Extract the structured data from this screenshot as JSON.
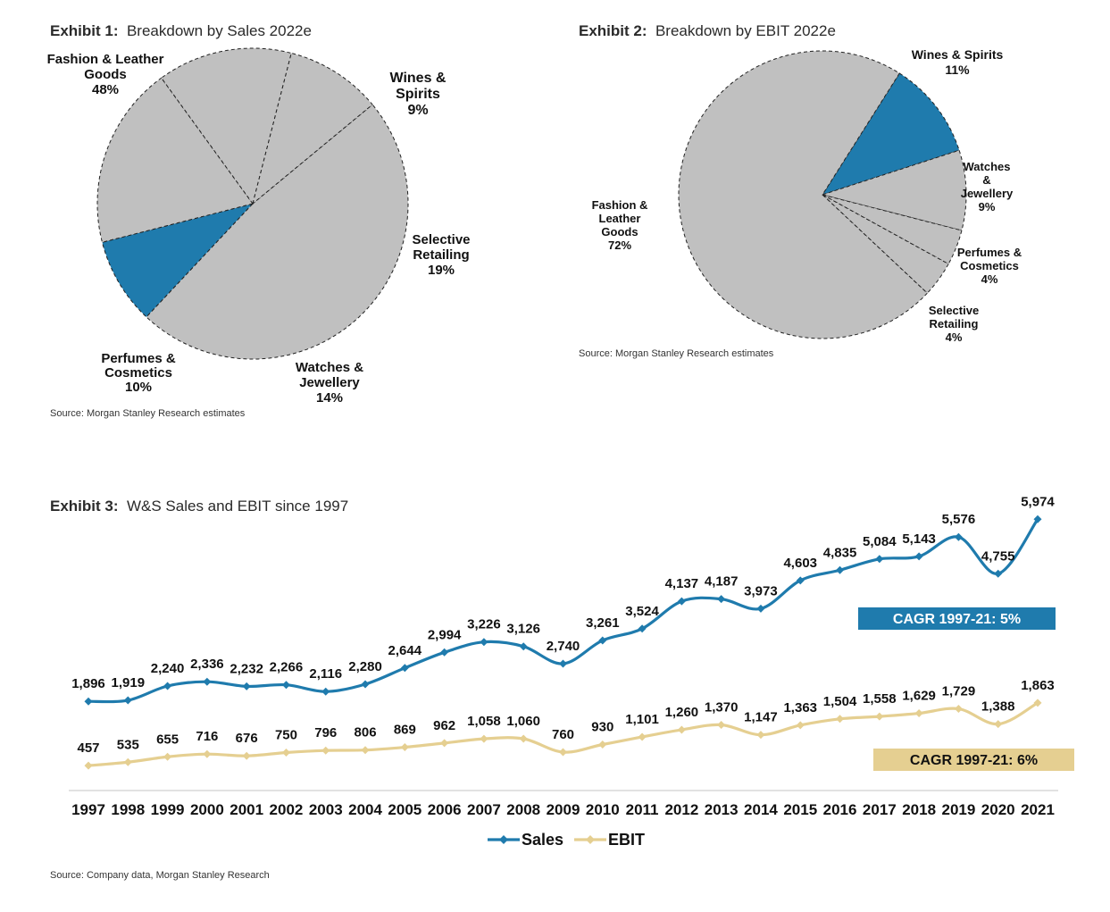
{
  "colors": {
    "grey_slice": "#c0c0c0",
    "blue": "#1f7bad",
    "gold": "#e5cf91",
    "cagr_sales_bg": "#1f7bad",
    "cagr_ebit_bg": "#e5cf91"
  },
  "chart_data": [
    {
      "type": "pie",
      "exhibit": "Exhibit 1:",
      "title": "Breakdown by Sales 2022e",
      "source": "Source: Morgan Stanley Research estimates",
      "slices": [
        {
          "label": "Fashion & Leather Goods",
          "value_label": "48%",
          "value": 48,
          "color": "#c0c0c0"
        },
        {
          "label": "Wines & Spirits",
          "value_label": "9%",
          "value": 9,
          "color": "#1f7bad"
        },
        {
          "label": "Selective Retailing",
          "value_label": "19%",
          "value": 19,
          "color": "#c0c0c0"
        },
        {
          "label": "Watches & Jewellery",
          "value_label": "14%",
          "value": 14,
          "color": "#c0c0c0"
        },
        {
          "label": "Perfumes & Cosmetics",
          "value_label": "10%",
          "value": 10,
          "color": "#c0c0c0"
        }
      ]
    },
    {
      "type": "pie",
      "exhibit": "Exhibit 2:",
      "title": "Breakdown by EBIT 2022e",
      "source": "Source: Morgan Stanley Research estimates",
      "slices": [
        {
          "label": "Wines & Spirits",
          "value_label": "11%",
          "value": 11,
          "color": "#1f7bad"
        },
        {
          "label": "Watches & Jewellery",
          "value_label": "9%",
          "value": 9,
          "color": "#c0c0c0"
        },
        {
          "label": "Perfumes & Cosmetics",
          "value_label": "4%",
          "value": 4,
          "color": "#c0c0c0"
        },
        {
          "label": "Selective Retailing",
          "value_label": "4%",
          "value": 4,
          "color": "#c0c0c0"
        },
        {
          "label": "Fashion & Leather Goods",
          "value_label": "72%",
          "value": 72,
          "color": "#c0c0c0"
        }
      ]
    },
    {
      "type": "line",
      "exhibit": "Exhibit 3:",
      "title": "W&S Sales and EBIT since 1997",
      "source": "Source: Company data, Morgan Stanley Research",
      "categories": [
        "1997",
        "1998",
        "1999",
        "2000",
        "2001",
        "2002",
        "2003",
        "2004",
        "2005",
        "2006",
        "2007",
        "2008",
        "2009",
        "2010",
        "2011",
        "2012",
        "2013",
        "2014",
        "2015",
        "2016",
        "2017",
        "2018",
        "2019",
        "2020",
        "2021"
      ],
      "series": [
        {
          "name": "Sales",
          "color": "#1f7bad",
          "values": [
            1896,
            1919,
            2240,
            2336,
            2232,
            2266,
            2116,
            2280,
            2644,
            2994,
            3226,
            3126,
            2740,
            3261,
            3524,
            4137,
            4187,
            3973,
            4603,
            4835,
            5084,
            5143,
            5576,
            4755,
            5974
          ],
          "labels": [
            "1,896",
            "1,919",
            "2,240",
            "2,336",
            "2,232",
            "2,266",
            "2,116",
            "2,280",
            "2,644",
            "2,994",
            "3,226",
            "3,126",
            "2,740",
            "3,261",
            "3,524",
            "4,137",
            "4,187",
            "3,973",
            "4,603",
            "4,835",
            "5,084",
            "5,143",
            "5,576",
            "4,755",
            "5,974"
          ]
        },
        {
          "name": "EBIT",
          "color": "#e5cf91",
          "values": [
            457,
            535,
            655,
            716,
            676,
            750,
            796,
            806,
            869,
            962,
            1058,
            1060,
            760,
            930,
            1101,
            1260,
            1370,
            1147,
            1363,
            1504,
            1558,
            1629,
            1729,
            1388,
            1863
          ],
          "labels": [
            "457",
            "535",
            "655",
            "716",
            "676",
            "750",
            "796",
            "806",
            "869",
            "962",
            "1,058",
            "1,060",
            "760",
            "930",
            "1,101",
            "1,260",
            "1,370",
            "1,147",
            "1,363",
            "1,504",
            "1,558",
            "1,629",
            "1,729",
            "1,388",
            "1,863"
          ]
        }
      ],
      "annotations": [
        "CAGR 1997-21: 5%",
        "CAGR 1997-21: 6%"
      ],
      "legend": "bottom-center"
    }
  ]
}
